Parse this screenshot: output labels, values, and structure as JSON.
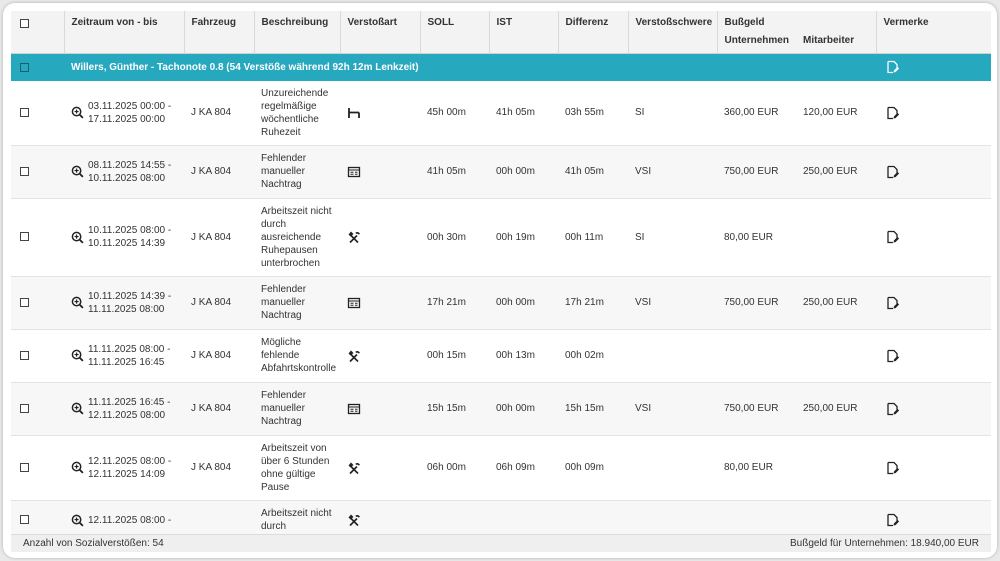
{
  "columns": {
    "zeitraum": "Zeitraum von - bis",
    "fahrzeug": "Fahrzeug",
    "beschreibung": "Beschreibung",
    "verstossart": "Verstoßart",
    "soll": "SOLL",
    "ist": "IST",
    "differenz": "Differenz",
    "verstossschwere": "Verstoßschwere",
    "bussgeld": "Bußgeld",
    "unternehmen": "Unternehmen",
    "mitarbeiter": "Mitarbeiter",
    "vermerke": "Vermerke"
  },
  "group": {
    "title": "Willers, Günther - Tachonote 0.8 (54 Verstöße während 92h 12m Lenkzeit)",
    "color": "#26a8be"
  },
  "rows": [
    {
      "von": "03.11.2025 00:00 -",
      "bis": "17.11.2025 00:00",
      "fahrzeug": "J KA 804",
      "beschreibung": "Unzureichende regelmäßige wöchentliche Ruhezeit",
      "art_icon": "bed-icon",
      "soll": "45h 00m",
      "ist": "41h 05m",
      "differenz": "03h 55m",
      "schwere": "SI",
      "unternehmen": "360,00 EUR",
      "mitarbeiter": "120,00 EUR"
    },
    {
      "von": "08.11.2025 14:55 -",
      "bis": "10.11.2025 08:00",
      "fahrzeug": "J KA 804",
      "beschreibung": "Fehlender manueller Nachtrag",
      "art_icon": "form-icon",
      "soll": "41h 05m",
      "ist": "00h 00m",
      "differenz": "41h 05m",
      "schwere": "VSI",
      "unternehmen": "750,00 EUR",
      "mitarbeiter": "250,00 EUR"
    },
    {
      "von": "10.11.2025 08:00 -",
      "bis": "10.11.2025 14:39",
      "fahrzeug": "J KA 804",
      "beschreibung": "Arbeitszeit nicht durch ausreichende Ruhepausen unterbrochen",
      "art_icon": "hammer-pick-icon",
      "soll": "00h 30m",
      "ist": "00h 19m",
      "differenz": "00h 11m",
      "schwere": "SI",
      "unternehmen": "80,00 EUR",
      "mitarbeiter": ""
    },
    {
      "von": "10.11.2025 14:39 -",
      "bis": "11.11.2025 08:00",
      "fahrzeug": "J KA 804",
      "beschreibung": "Fehlender manueller Nachtrag",
      "art_icon": "form-icon",
      "soll": "17h 21m",
      "ist": "00h 00m",
      "differenz": "17h 21m",
      "schwere": "VSI",
      "unternehmen": "750,00 EUR",
      "mitarbeiter": "250,00 EUR"
    },
    {
      "von": "11.11.2025 08:00 -",
      "bis": "11.11.2025 16:45",
      "fahrzeug": "J KA 804",
      "beschreibung": "Mögliche fehlende Abfahrtskontrolle",
      "art_icon": "hammer-pick-icon",
      "soll": "00h 15m",
      "ist": "00h 13m",
      "differenz": "00h 02m",
      "schwere": "",
      "unternehmen": "",
      "mitarbeiter": ""
    },
    {
      "von": "11.11.2025 16:45 -",
      "bis": "12.11.2025 08:00",
      "fahrzeug": "J KA 804",
      "beschreibung": "Fehlender manueller Nachtrag",
      "art_icon": "form-icon",
      "soll": "15h 15m",
      "ist": "00h 00m",
      "differenz": "15h 15m",
      "schwere": "VSI",
      "unternehmen": "750,00 EUR",
      "mitarbeiter": "250,00 EUR"
    },
    {
      "von": "12.11.2025 08:00 -",
      "bis": "12.11.2025 14:09",
      "fahrzeug": "J KA 804",
      "beschreibung": "Arbeitszeit von über 6 Stunden ohne gültige Pause",
      "art_icon": "hammer-pick-icon",
      "soll": "06h 00m",
      "ist": "06h 09m",
      "differenz": "00h 09m",
      "schwere": "",
      "unternehmen": "80,00 EUR",
      "mitarbeiter": ""
    },
    {
      "von": "12.11.2025 08:00 -",
      "bis": "",
      "fahrzeug": "",
      "beschreibung": "Arbeitszeit nicht durch",
      "art_icon": "hammer-pick-icon",
      "soll": "",
      "ist": "",
      "differenz": "",
      "schwere": "",
      "unternehmen": "",
      "mitarbeiter": ""
    }
  ],
  "footer": {
    "count_label": "Anzahl von Sozialverstößen: 54",
    "total_label": "Bußgeld für Unternehmen: 18.940,00 EUR"
  }
}
